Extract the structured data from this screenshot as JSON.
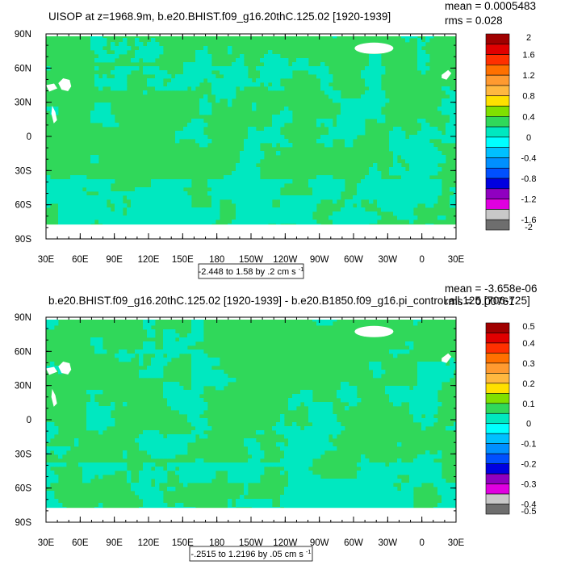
{
  "chart_data": [
    {
      "type": "heatmap",
      "title": "UISOP at z=1968.9m, b.e20.BHIST.f09_g16.20thC.125.02 [1920-1939]",
      "stats": {
        "mean": "mean = 0.0005483",
        "rms": "rms = 0.028"
      },
      "x_ticks": [
        "30E",
        "60E",
        "90E",
        "120E",
        "150E",
        "180",
        "150W",
        "120W",
        "90W",
        "60W",
        "30W",
        "0",
        "30E"
      ],
      "y_ticks": [
        "90N",
        "60N",
        "30N",
        "0",
        "30S",
        "60S",
        "90S"
      ],
      "xlim": [
        30,
        390
      ],
      "ylim": [
        -90,
        90
      ],
      "grid": false,
      "legend_position": "right",
      "colorbar_labels": [
        "2",
        "1.6",
        "1.2",
        "0.8",
        "0.4",
        "0",
        "-0.4",
        "-0.8",
        "-1.2",
        "-1.6",
        "-2"
      ],
      "contour_info": "-2.448 to 1.58 by .2 cm s",
      "contour_unit_exp": "-1",
      "dominant_value_range": [
        0,
        0.2
      ],
      "secondary_value_range": [
        -0.2,
        0
      ]
    },
    {
      "type": "heatmap",
      "title": "b.e20.BHIST.f09_g16.20thC.125.02 [1920-1939] - b.e20.B1850.f09_g16.pi_control.all.125 [706-725]",
      "stats": {
        "mean": "mean = -3.658e-06",
        "rms": "rms = 0.00761"
      },
      "x_ticks": [
        "30E",
        "60E",
        "90E",
        "120E",
        "150E",
        "180",
        "150W",
        "120W",
        "90W",
        "60W",
        "30W",
        "0",
        "30E"
      ],
      "y_ticks": [
        "90N",
        "60N",
        "30N",
        "0",
        "30S",
        "60S",
        "90S"
      ],
      "xlim": [
        30,
        390
      ],
      "ylim": [
        -90,
        90
      ],
      "grid": false,
      "legend_position": "right",
      "colorbar_labels": [
        "0.5",
        "0.4",
        "0.3",
        "0.2",
        "0.1",
        "0",
        "-0.1",
        "-0.2",
        "-0.3",
        "-0.4",
        "-0.5"
      ],
      "contour_info": "-.2515 to 1.2196 by .05 cm s",
      "contour_unit_exp": "-1",
      "dominant_value_range": [
        0,
        0.05
      ],
      "secondary_value_range": [
        -0.05,
        0
      ]
    }
  ],
  "colors": {
    "scale": [
      "#a00000",
      "#e00000",
      "#ff3000",
      "#ff7000",
      "#ff9a30",
      "#ffb840",
      "#ffe000",
      "#80e000",
      "#30d85a",
      "#00e8c0",
      "#00ffff",
      "#00c0ff",
      "#0090ff",
      "#0050ff",
      "#0000e0",
      "#9000c0",
      "#e000e0",
      "#c8c8c8",
      "#6e6e6e"
    ],
    "dominant": "#30d85a",
    "secondary": "#00e8c0",
    "land": "#ffffff"
  }
}
